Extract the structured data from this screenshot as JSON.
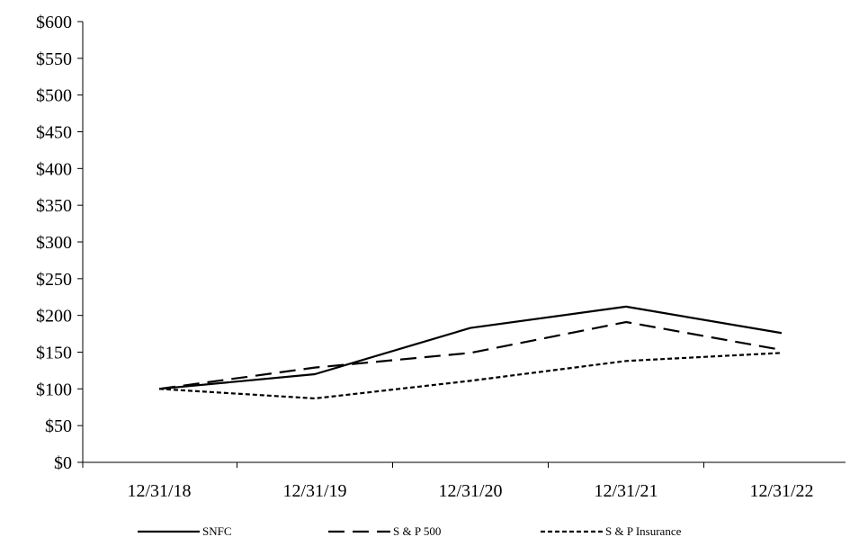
{
  "chart_data": {
    "type": "line",
    "title": "",
    "xlabel": "",
    "ylabel": "",
    "categories": [
      "12/31/18",
      "12/31/19",
      "12/31/20",
      "12/31/21",
      "12/31/22"
    ],
    "y_ticks": [
      "$0",
      "$50",
      "$100",
      "$150",
      "$200",
      "$250",
      "$300",
      "$350",
      "$400",
      "$450",
      "$500",
      "$550",
      "$600"
    ],
    "ylim": [
      0,
      600
    ],
    "y_tick_step": 50,
    "grid": false,
    "legend_position": "bottom",
    "series": [
      {
        "name": "SNFC",
        "values": [
          100,
          120,
          183,
          212,
          176
        ],
        "line_style": "solid",
        "color": "#000000"
      },
      {
        "name": "S & P 500",
        "values": [
          100,
          129,
          149,
          191,
          153
        ],
        "line_style": "dashed",
        "color": "#000000"
      },
      {
        "name": "S & P Insurance",
        "values": [
          100,
          87,
          111,
          138,
          149
        ],
        "line_style": "dotted",
        "color": "#000000"
      }
    ]
  }
}
